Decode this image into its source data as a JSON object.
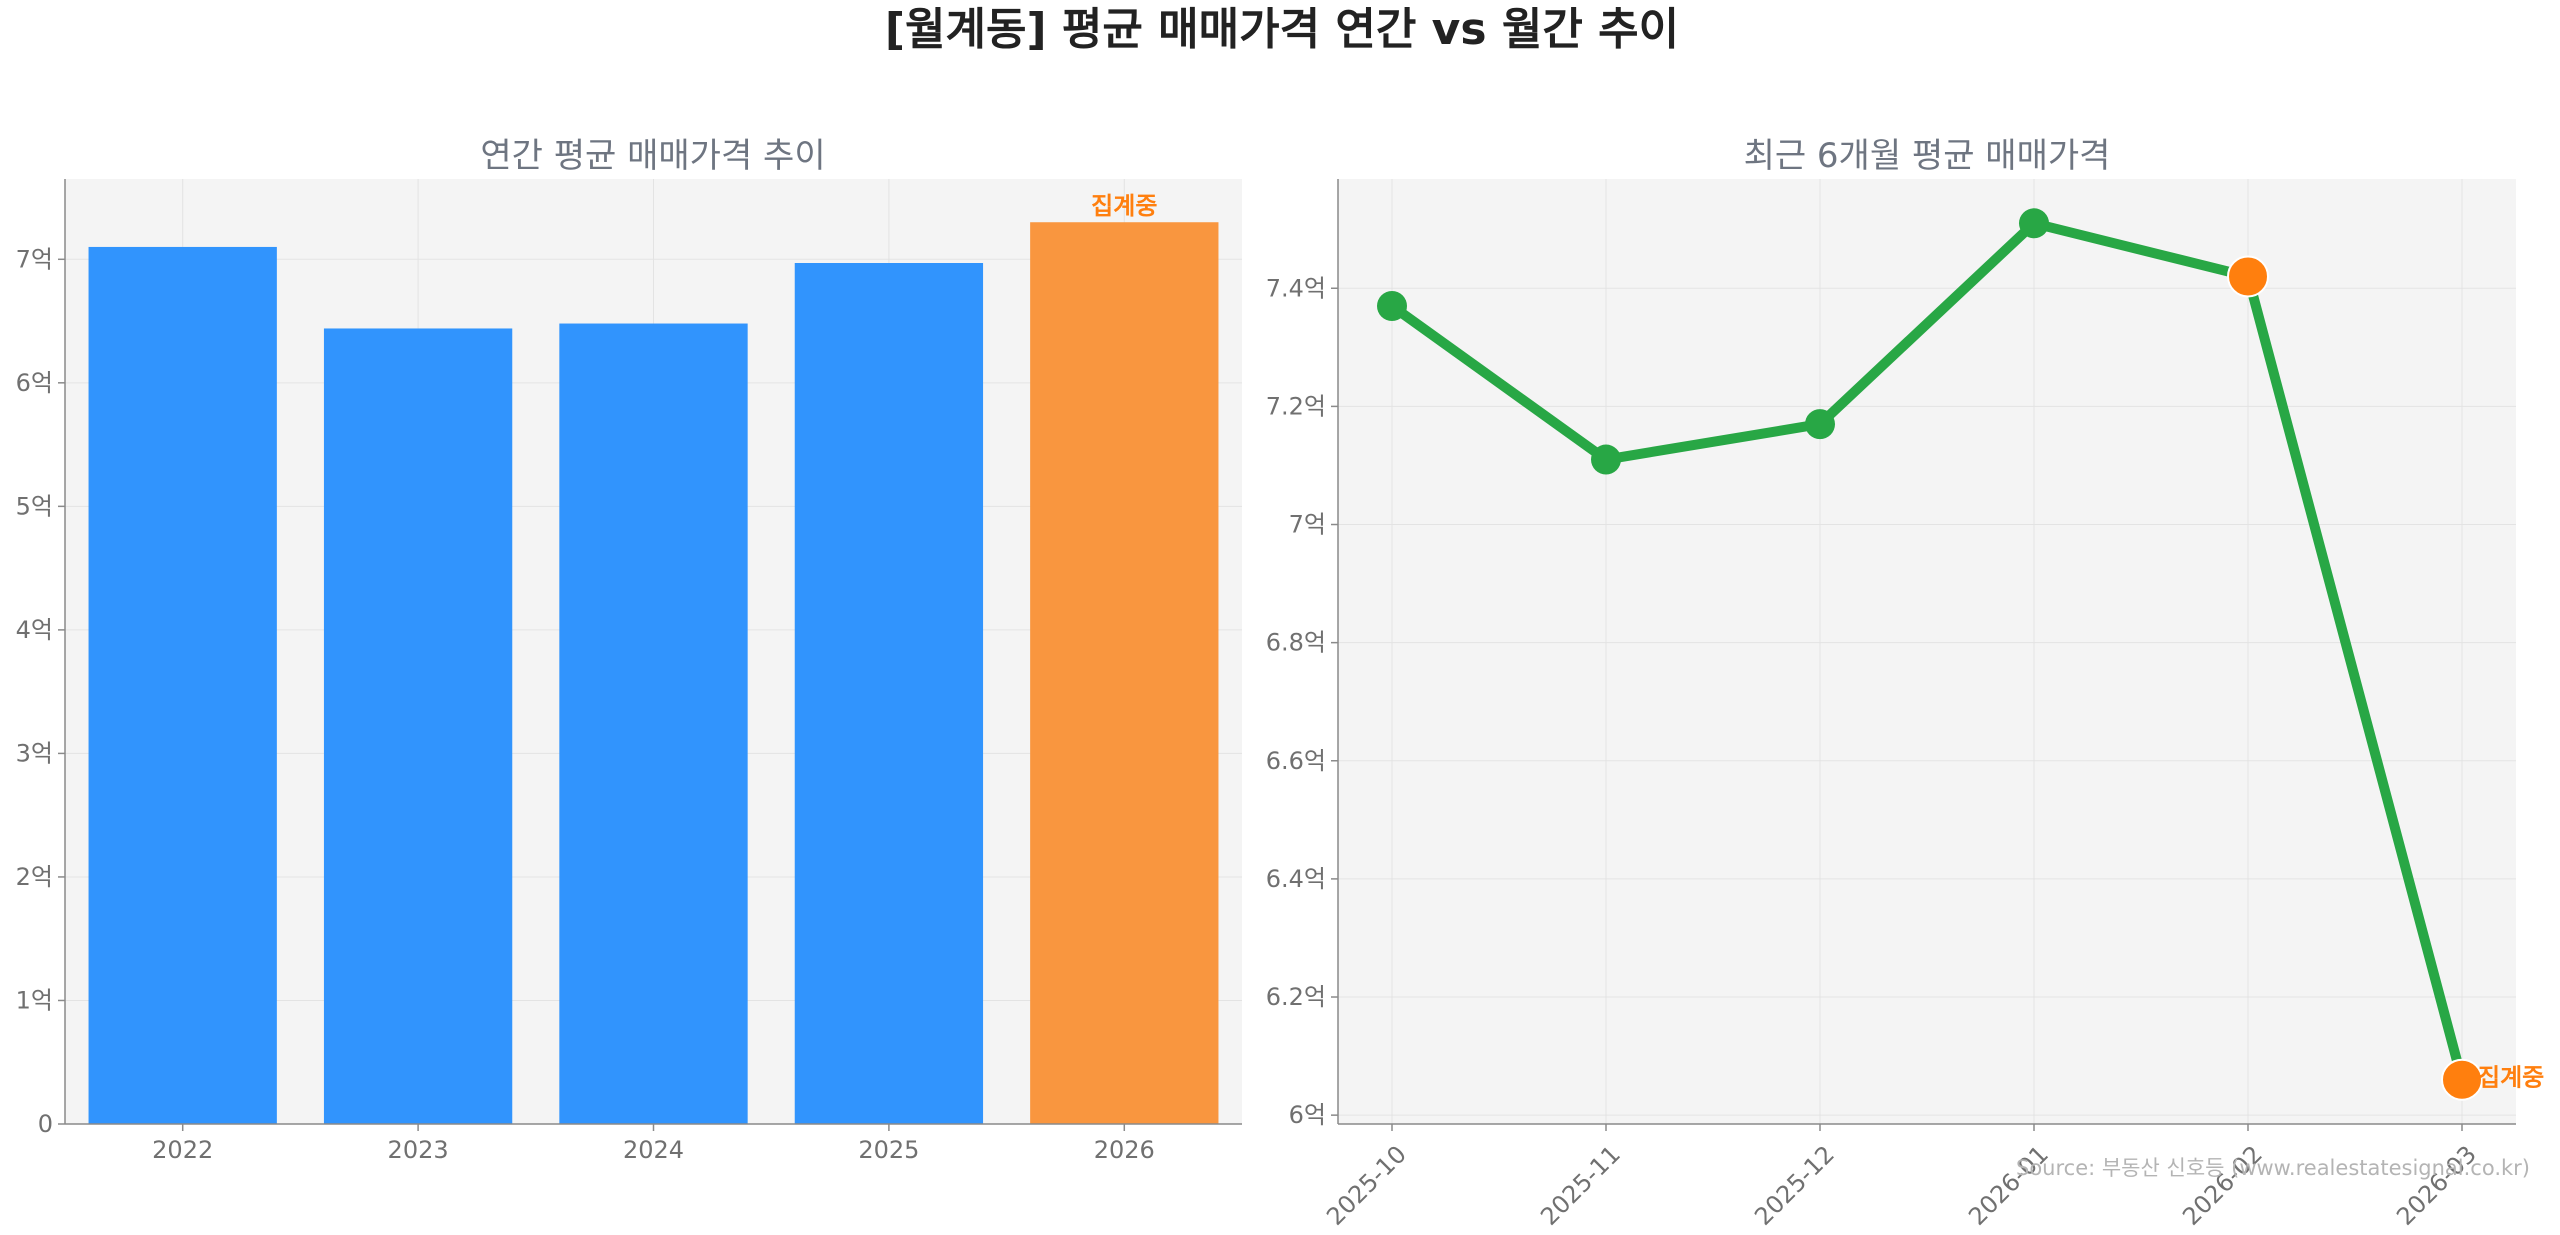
{
  "title": "[월계동] 평균 매매가격 연간 vs 월간 추이",
  "source": "Source: 부동산 신호등 (www.realestatesignal.co.kr)",
  "colors": {
    "bar": "#3194fd",
    "bar_highlight": "#f9963f",
    "line": "#28a745",
    "highlight": "#ff7f0e",
    "plot_bg": "#f4f4f4"
  },
  "chart_data": [
    {
      "type": "bar",
      "title": "연간 평균 매매가격 추이",
      "categories": [
        "2022",
        "2023",
        "2024",
        "2025",
        "2026"
      ],
      "values": [
        7.1,
        6.44,
        6.48,
        6.97,
        7.3
      ],
      "unit": "억",
      "ylim": [
        0,
        7.65
      ],
      "yticks": [
        0,
        1,
        2,
        3,
        4,
        5,
        6,
        7
      ],
      "ytick_labels": [
        "0",
        "1억",
        "2억",
        "3억",
        "4억",
        "5억",
        "6억",
        "7억"
      ],
      "grid": true,
      "highlight_index": 4,
      "annotation": {
        "index": 4,
        "text": "집계중"
      }
    },
    {
      "type": "line",
      "title": "최근 6개월 평균 매매가격",
      "x": [
        "2025-10",
        "2025-11",
        "2025-12",
        "2026-01",
        "2026-02",
        "2026-03"
      ],
      "values": [
        7.37,
        7.11,
        7.17,
        7.51,
        7.42,
        6.06
      ],
      "unit": "억",
      "ylim": [
        5.985,
        7.585
      ],
      "yticks": [
        6.0,
        6.2,
        6.4,
        6.6,
        6.8,
        7.0,
        7.2,
        7.4
      ],
      "ytick_labels": [
        "6억",
        "6.2억",
        "6.4억",
        "6.6억",
        "6.8억",
        "7억",
        "7.2억",
        "7.4억"
      ],
      "grid": true,
      "highlight_indices": [
        4,
        5
      ],
      "annotation": {
        "index": 5,
        "text": "집계중"
      }
    }
  ]
}
